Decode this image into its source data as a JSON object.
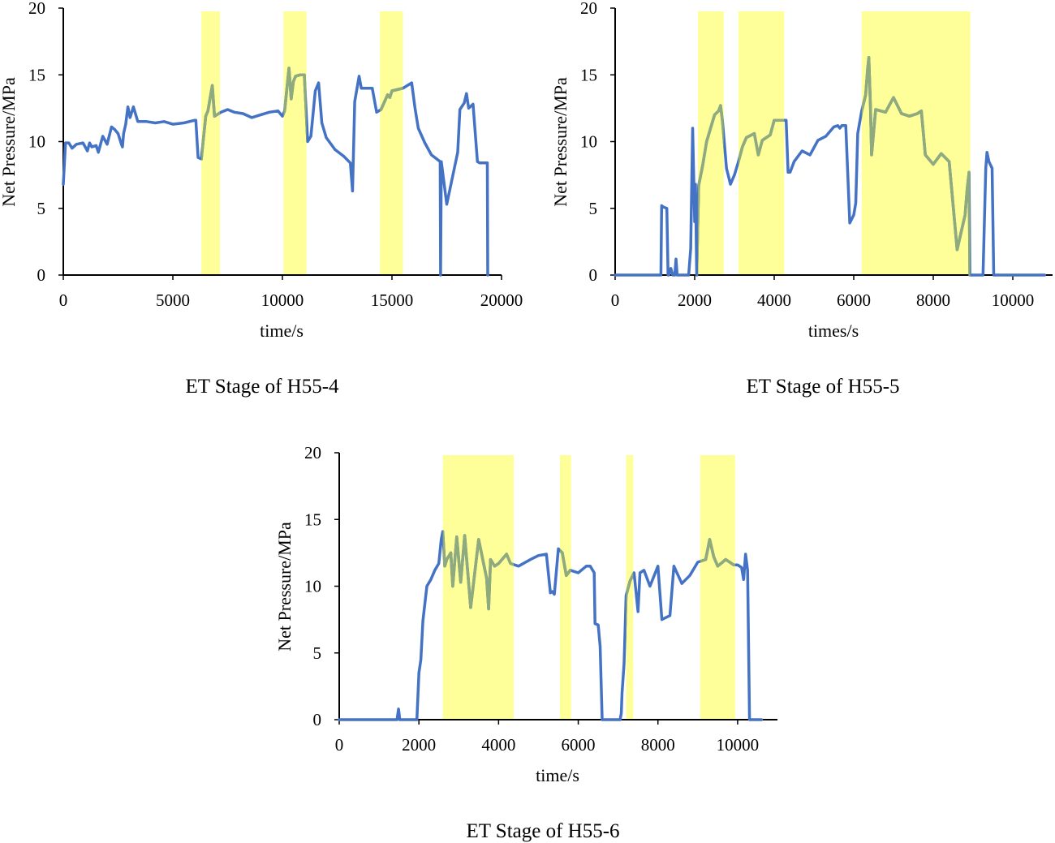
{
  "colors": {
    "line": "#4472c4",
    "highlight_fill": "#ffff99",
    "line_in_highlight": "#8faa7c"
  },
  "chart_data": [
    {
      "type": "line",
      "caption": "ET Stage of H55-4",
      "xlabel": "time/s",
      "ylabel": "Net Pressure/MPa",
      "xlim": [
        0,
        20000
      ],
      "ylim": [
        0,
        20
      ],
      "xticks": [
        0,
        5000,
        10000,
        15000,
        20000
      ],
      "yticks": [
        0,
        5,
        10,
        15,
        20
      ],
      "highlight_ranges": [
        [
          6300,
          7150
        ],
        [
          10050,
          11100
        ],
        [
          14450,
          15500
        ]
      ],
      "x": [
        0,
        100,
        250,
        400,
        600,
        900,
        1100,
        1200,
        1300,
        1500,
        1600,
        1800,
        2000,
        2200,
        2350,
        2500,
        2650,
        2700,
        2750,
        2850,
        2950,
        3050,
        3200,
        3400,
        3800,
        4200,
        4600,
        5000,
        5500,
        6000,
        6050,
        6150,
        6300,
        6500,
        6600,
        6800,
        6900,
        7200,
        7500,
        7800,
        8200,
        8600,
        9000,
        9400,
        9800,
        10000,
        10100,
        10300,
        10400,
        10500,
        10600,
        10800,
        11000,
        11150,
        11300,
        11500,
        11650,
        11800,
        12000,
        12400,
        12800,
        13100,
        13200,
        13300,
        13500,
        13600,
        13800,
        14100,
        14300,
        14500,
        14800,
        14900,
        15000,
        15500,
        15900,
        16050,
        16200,
        16500,
        16800,
        17200,
        17220,
        17250,
        17500,
        18000,
        18100,
        18300,
        18400,
        18500,
        18700,
        18900,
        19000,
        19350,
        19370
      ],
      "values": [
        6.8,
        9.9,
        9.9,
        9.5,
        9.8,
        9.9,
        9.3,
        9.9,
        9.6,
        9.7,
        9.2,
        10.4,
        9.8,
        11.1,
        10.9,
        10.6,
        9.8,
        9.6,
        10.6,
        11.3,
        12.6,
        11.8,
        12.6,
        11.5,
        11.5,
        11.4,
        11.5,
        11.3,
        11.4,
        11.6,
        11.6,
        8.8,
        8.7,
        11.9,
        12.3,
        14.2,
        11.9,
        12.2,
        12.4,
        12.2,
        12.1,
        11.8,
        12.0,
        12.2,
        12.3,
        11.9,
        12.3,
        15.5,
        13.2,
        14.5,
        14.9,
        15.0,
        15.0,
        10.0,
        10.4,
        13.8,
        14.4,
        11.4,
        10.3,
        9.4,
        8.9,
        8.4,
        6.3,
        13.0,
        14.9,
        14.0,
        14.0,
        14.0,
        12.2,
        12.4,
        13.5,
        13.3,
        13.8,
        14.0,
        14.4,
        12.5,
        11.0,
        9.9,
        9.0,
        8.5,
        0.0,
        8.5,
        5.3,
        9.2,
        12.4,
        12.9,
        13.6,
        12.5,
        12.8,
        8.5,
        8.4,
        8.4,
        0.0
      ]
    },
    {
      "type": "line",
      "caption": "ET Stage of H55-5",
      "xlabel": "times/s",
      "ylabel": "Net Pressure/MPa",
      "xlim": [
        0,
        11000
      ],
      "ylim": [
        0,
        20
      ],
      "xticks": [
        0,
        2000,
        4000,
        6000,
        8000,
        10000
      ],
      "yticks": [
        0,
        5,
        10,
        15,
        20
      ],
      "highlight_ranges": [
        [
          2080,
          2730
        ],
        [
          3100,
          4250
        ],
        [
          6200,
          8930
        ]
      ],
      "x": [
        0,
        1150,
        1170,
        1210,
        1300,
        1330,
        1350,
        1400,
        1450,
        1500,
        1530,
        1560,
        1600,
        1650,
        1850,
        1900,
        1950,
        2000,
        2020,
        2050,
        2100,
        2200,
        2300,
        2400,
        2500,
        2600,
        2650,
        2700,
        2800,
        2900,
        3000,
        3100,
        3200,
        3300,
        3500,
        3600,
        3700,
        3900,
        4000,
        4200,
        4300,
        4350,
        4400,
        4500,
        4700,
        4900,
        5100,
        5300,
        5500,
        5600,
        5650,
        5700,
        5800,
        5900,
        6000,
        6050,
        6100,
        6200,
        6300,
        6350,
        6380,
        6420,
        6450,
        6550,
        6800,
        7000,
        7200,
        7400,
        7600,
        7700,
        7800,
        8000,
        8200,
        8400,
        8600,
        8800,
        8850,
        8900,
        8920,
        9250,
        9320,
        9350,
        9400,
        9480,
        9520,
        10800
      ],
      "values": [
        0.0,
        0.0,
        5.2,
        5.1,
        5.0,
        0.0,
        0.0,
        0.5,
        0.0,
        0.0,
        1.2,
        0.0,
        0.0,
        0.0,
        0.0,
        2.0,
        11.0,
        4.0,
        6.8,
        0.0,
        6.7,
        8.2,
        10.0,
        11.0,
        12.0,
        12.3,
        12.7,
        11.5,
        8.0,
        6.8,
        7.5,
        8.5,
        9.6,
        10.3,
        10.6,
        9.0,
        10.1,
        10.5,
        11.6,
        11.6,
        11.6,
        7.7,
        7.7,
        8.5,
        9.3,
        9.0,
        10.1,
        10.4,
        11.1,
        11.2,
        11.0,
        11.2,
        11.2,
        3.9,
        4.5,
        5.4,
        10.6,
        12.3,
        13.5,
        15.5,
        16.3,
        12.6,
        9.0,
        12.4,
        12.2,
        13.3,
        12.1,
        11.9,
        12.1,
        12.3,
        9.0,
        8.3,
        9.1,
        8.5,
        1.9,
        4.5,
        6.4,
        7.7,
        0.0,
        0.0,
        8.0,
        9.2,
        8.5,
        8.0,
        0.0,
        0.0
      ]
    },
    {
      "type": "line",
      "caption": "ET Stage of H55-6",
      "xlabel": "time/s",
      "ylabel": "Net Pressure/MPa",
      "xlim": [
        0,
        11000
      ],
      "ylim": [
        0,
        20
      ],
      "xticks": [
        0,
        2000,
        4000,
        6000,
        8000,
        10000
      ],
      "yticks": [
        0,
        5,
        10,
        15,
        20
      ],
      "highlight_ranges": [
        [
          2600,
          4380
        ],
        [
          5540,
          5820
        ],
        [
          7200,
          7380
        ],
        [
          9060,
          9940
        ]
      ],
      "x": [
        0,
        1450,
        1490,
        1520,
        1550,
        1950,
        2000,
        2050,
        2100,
        2200,
        2300,
        2400,
        2500,
        2560,
        2600,
        2650,
        2700,
        2800,
        2850,
        2950,
        3050,
        3150,
        3300,
        3500,
        3700,
        3750,
        3800,
        3900,
        4000,
        4200,
        4300,
        4500,
        4800,
        5000,
        5200,
        5300,
        5350,
        5400,
        5500,
        5600,
        5700,
        5800,
        6000,
        6200,
        6300,
        6400,
        6420,
        6500,
        6550,
        6600,
        6650,
        6700,
        6720,
        7050,
        7080,
        7100,
        7150,
        7200,
        7300,
        7400,
        7500,
        7550,
        7650,
        7800,
        8000,
        8100,
        8300,
        8400,
        8600,
        8800,
        9000,
        9200,
        9300,
        9400,
        9500,
        9700,
        9900,
        10000,
        10100,
        10150,
        10200,
        10250,
        10300,
        10350,
        10400,
        10600
      ],
      "values": [
        0.0,
        0.0,
        0.8,
        0.0,
        0.0,
        0.0,
        3.5,
        4.5,
        7.4,
        10.0,
        10.5,
        11.2,
        11.7,
        13.5,
        14.1,
        11.5,
        12.0,
        12.5,
        10.0,
        13.7,
        10.3,
        13.8,
        8.4,
        13.5,
        10.6,
        8.3,
        12.0,
        11.5,
        11.7,
        12.4,
        11.7,
        11.5,
        12.0,
        12.3,
        12.4,
        9.5,
        9.6,
        9.4,
        12.8,
        12.5,
        10.8,
        11.2,
        11.0,
        11.5,
        11.5,
        11.0,
        7.2,
        7.1,
        5.5,
        0.0,
        0.0,
        0.0,
        0.0,
        0.0,
        0.5,
        2.0,
        4.2,
        9.3,
        10.4,
        11.0,
        8.1,
        11.0,
        11.2,
        10.0,
        11.5,
        7.5,
        7.8,
        11.5,
        10.2,
        10.8,
        11.8,
        12.0,
        13.5,
        12.2,
        11.5,
        12.0,
        11.6,
        11.6,
        11.4,
        10.5,
        12.4,
        11.2,
        0.0,
        0.0,
        0.0,
        0.0
      ]
    }
  ]
}
